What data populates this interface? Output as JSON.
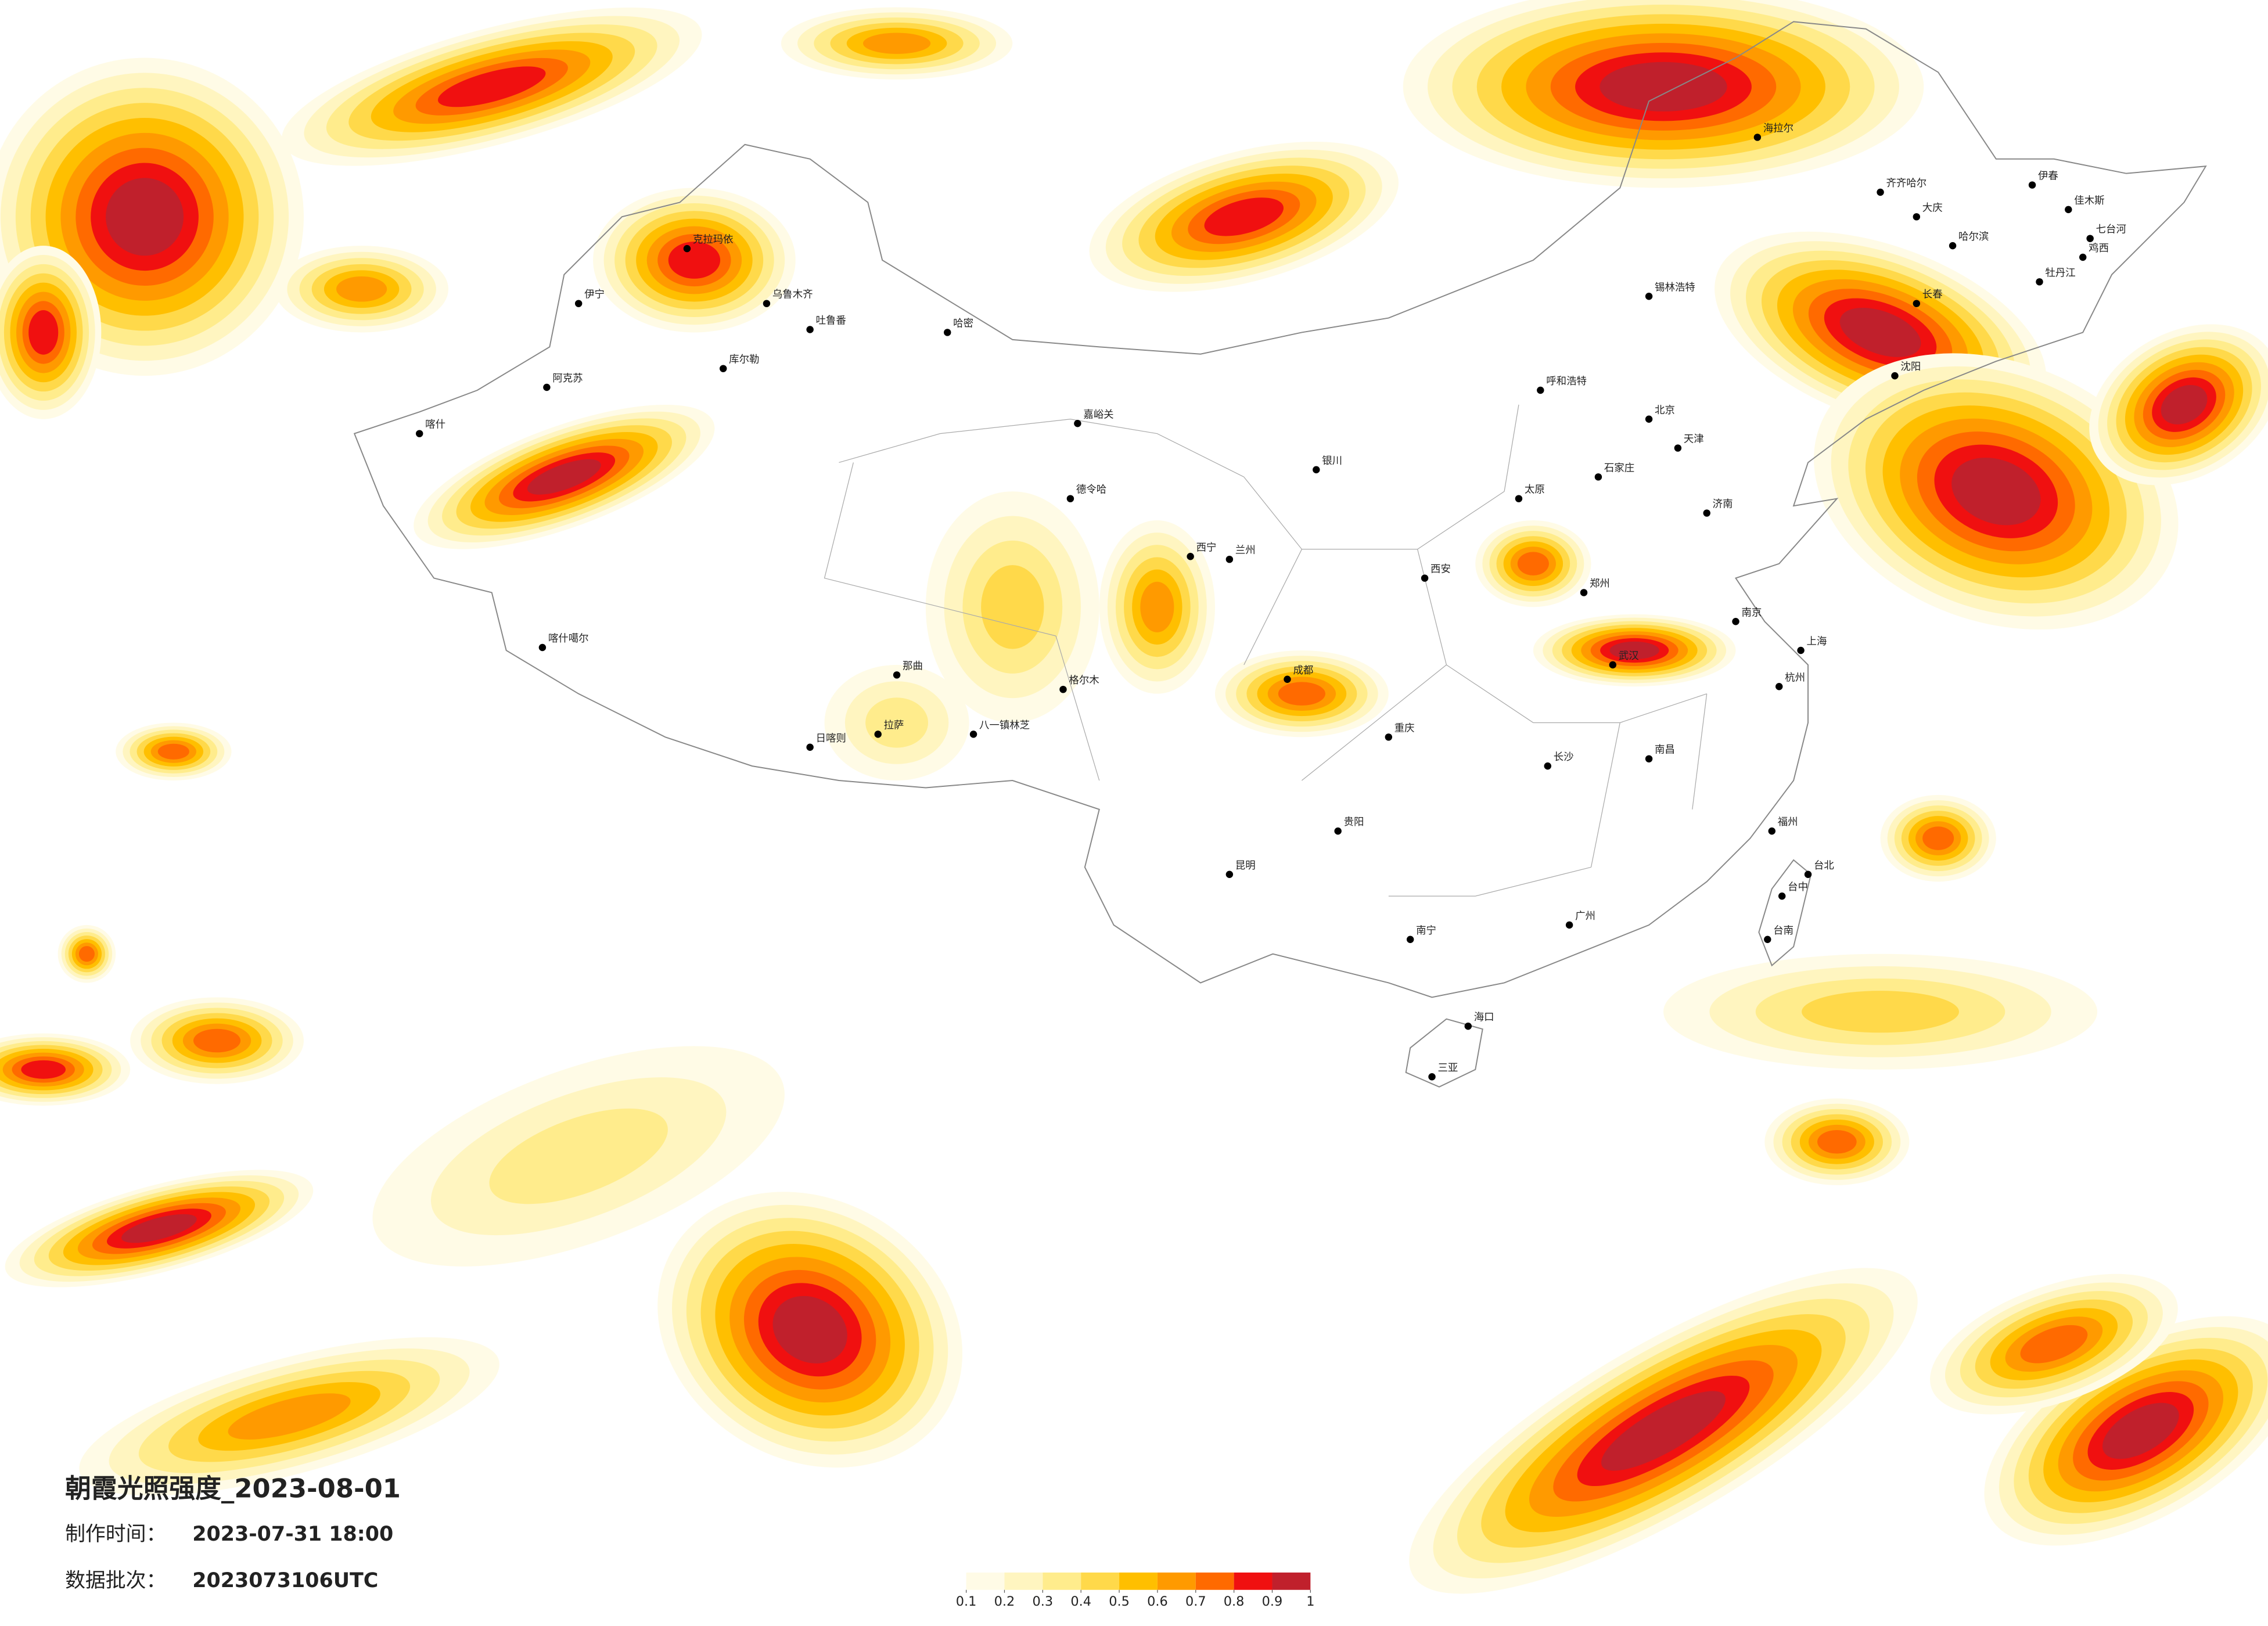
{
  "title": "朝霞光照强度_2023-08-01",
  "made_time": {
    "label": "制作时间：",
    "value": "2023-07-31 18:00"
  },
  "batch": {
    "label": "数据批次：",
    "value": "2023073106UTC"
  },
  "legend": {
    "ticks": [
      0.1,
      0.2,
      0.3,
      0.4,
      0.5,
      0.6,
      0.7,
      0.8,
      0.9,
      1
    ],
    "colors": [
      "#fffbe6",
      "#fff5c0",
      "#ffec8c",
      "#ffd94a",
      "#ffbf00",
      "#ff9a00",
      "#ff6a00",
      "#f01010",
      "#c0202c"
    ]
  },
  "cities": [
    "喀什",
    "阿克苏",
    "伊宁",
    "克拉玛依",
    "库尔勒",
    "乌鲁木齐",
    "吐鲁番",
    "哈密",
    "喀什噶尔",
    "日喀则",
    "拉萨",
    "八一镇林芝",
    "那曲",
    "格尔木",
    "德令哈",
    "嘉峪关",
    "西宁",
    "兰州",
    "银川",
    "呼和浩特",
    "锡林浩特",
    "海拉尔",
    "齐齐哈尔",
    "大庆",
    "哈尔滨",
    "伊春",
    "佳木斯",
    "七台河",
    "鸡西",
    "牡丹江",
    "长春",
    "沈阳",
    "北京",
    "天津",
    "石家庄",
    "太原",
    "济南",
    "郑州",
    "西安",
    "成都",
    "重庆",
    "武汉",
    "南京",
    "上海",
    "杭州",
    "长沙",
    "南昌",
    "福州",
    "广州",
    "贵阳",
    "昆明",
    "南宁",
    "海口",
    "三亚",
    "台北",
    "台中",
    "台南"
  ]
}
